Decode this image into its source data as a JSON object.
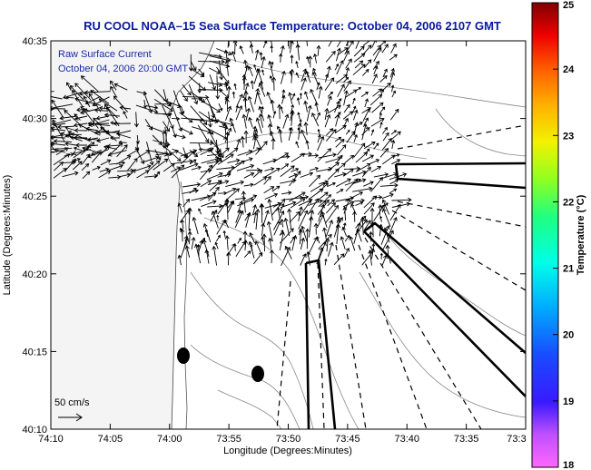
{
  "chart_data": {
    "type": "other",
    "title": "RU COOL  NOAA–15  Sea Surface Temperature:  October 04, 2006 2107 GMT",
    "xlabel": "Longitude (Degrees:Minutes)",
    "ylabel": "Latitude (Degrees:Minutes)",
    "x_ticks": [
      "74:10",
      "74:05",
      "74:00",
      "73:55",
      "73:50",
      "73:45",
      "73:40",
      "73:35",
      "73:3"
    ],
    "y_ticks": [
      "40:35",
      "40:30",
      "40:25",
      "40:20",
      "40:15",
      "40:10"
    ],
    "overlay_lines": [
      "Raw Surface Current",
      "October 04, 2006 20:00 GMT"
    ],
    "scale_label": "50 cm/s",
    "colorbar": {
      "label": "Temperature (°C)",
      "ticks": [
        "25",
        "24",
        "23",
        "22",
        "21",
        "20",
        "19",
        "18"
      ],
      "range": [
        18,
        25
      ]
    },
    "colors": {
      "title": "#0a1a9c",
      "overlay": "#1c2aa6",
      "vectors": "#000000",
      "contours": "#888888"
    }
  }
}
